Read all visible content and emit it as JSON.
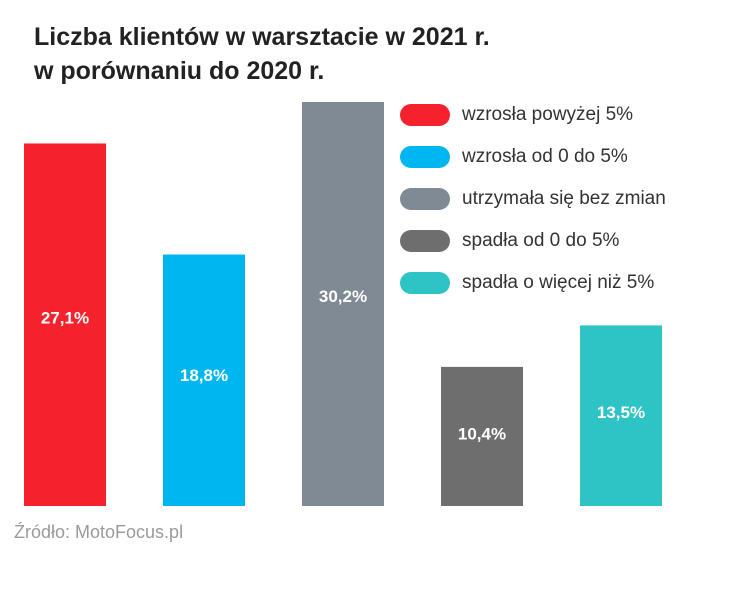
{
  "title": {
    "line1": "Liczba klientów w warsztacie w 2021 r.",
    "line2": "w porównaniu do 2020 r."
  },
  "source": "Źródło: MotoFocus.pl",
  "chart_data": {
    "type": "bar",
    "title": "Liczba klientów w warsztacie w 2021 r. w porównaniu do 2020 r.",
    "categories": [
      "wzrosła powyżej 5%",
      "wzrosła od 0 do 5%",
      "utrzymała się bez zmian",
      "spadła od 0 do 5%",
      "spadła o więcej niż 5%"
    ],
    "values": [
      27.1,
      18.8,
      30.2,
      10.4,
      13.5
    ],
    "value_labels": [
      "27,1%",
      "18,8%",
      "30,2%",
      "10,4%",
      "13,5%"
    ],
    "colors": [
      "#f5222d",
      "#00b6f0",
      "#7f8a94",
      "#6e6e6e",
      "#2ec4c6"
    ],
    "ylim": [
      0,
      30.2
    ],
    "grid": false,
    "legend_position": "top-right"
  }
}
